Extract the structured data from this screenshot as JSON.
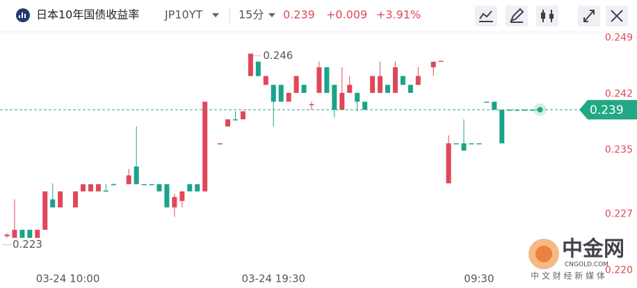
{
  "header": {
    "title": "日本10年国债收益率",
    "symbol": "JP10YT",
    "interval": "15分",
    "change": "+0.009",
    "change_pct": "+3.91%"
  },
  "chart_data": {
    "type": "candlestick",
    "categories": [
      null,
      null,
      null,
      null,
      null,
      null,
      null,
      null,
      "03-24 10:00",
      null,
      null,
      null,
      null,
      null,
      null,
      null,
      null,
      null,
      null,
      null,
      null,
      null,
      null,
      null,
      null,
      null,
      null,
      null,
      null,
      null,
      null,
      null,
      null,
      null,
      null,
      "03-24 19:30",
      null,
      null,
      null,
      null,
      null,
      null,
      null,
      null,
      null,
      null,
      null,
      null,
      null,
      null,
      null,
      null,
      null,
      null,
      null,
      null,
      null,
      null,
      null,
      null,
      null,
      null,
      "09:30",
      null,
      null,
      null,
      null,
      null,
      null,
      null,
      null
    ],
    "open": [
      0.2232,
      0.223,
      0.224,
      0.224,
      0.223,
      0.224,
      0.2278,
      0.2268,
      null,
      0.2268,
      0.2288,
      0.2288,
      0.2288,
      0.2289,
      0.2297,
      null,
      0.2297,
      0.2319,
      0.2297,
      0.2297,
      0.2297,
      0.2297,
      0.2268,
      0.2276,
      0.2297,
      0.2297,
      0.2288,
      null,
      0.2347,
      0.2369,
      0.2378,
      0.2378,
      0.2432,
      0.245,
      0.2421,
      0.2421,
      0.2421,
      0.24,
      0.2411,
      0.2421,
      0.2396,
      0.2411,
      0.2443,
      0.2421,
      0.239,
      0.2411,
      0.2411,
      0.24,
      0.2411,
      0.2411,
      0.2421,
      0.2411,
      0.2432,
      0.2421,
      0.2421,
      null,
      0.2443,
      0.245,
      0.2298,
      0.2348,
      0.2348,
      0.2348,
      0.2348,
      0.24,
      0.24,
      0.239,
      0.239,
      0.239,
      0.239,
      0.239,
      0.239
    ],
    "high": [
      0.2236,
      0.2278,
      0.224,
      0.224,
      0.224,
      0.2288,
      0.2298,
      0.2288,
      null,
      0.2288,
      0.2297,
      0.2297,
      0.2297,
      0.2297,
      0.2298,
      null,
      0.2316,
      0.2369,
      0.2297,
      0.2297,
      0.2297,
      0.2297,
      0.2285,
      0.2288,
      0.2297,
      0.2297,
      0.24,
      null,
      0.2348,
      0.2378,
      0.2388,
      0.2388,
      0.246,
      0.245,
      0.2432,
      0.2421,
      0.2421,
      0.2411,
      0.2432,
      0.2421,
      0.24,
      0.245,
      0.2443,
      0.2421,
      0.2443,
      0.2432,
      0.2411,
      0.24,
      0.2432,
      0.245,
      0.2421,
      0.245,
      0.2432,
      0.2421,
      0.2443,
      null,
      0.245,
      0.2451,
      0.2358,
      0.2348,
      0.2378,
      0.2348,
      0.2348,
      0.24,
      0.24,
      0.239,
      0.239,
      0.239,
      0.239,
      0.239,
      0.239
    ],
    "low": [
      0.223,
      0.223,
      0.223,
      0.223,
      0.223,
      0.224,
      0.2268,
      0.2268,
      null,
      0.2268,
      0.2288,
      0.2288,
      0.2288,
      0.2288,
      0.2296,
      null,
      0.2297,
      0.2297,
      0.2296,
      0.2296,
      0.2288,
      0.2268,
      0.2256,
      0.2268,
      0.2288,
      0.2288,
      0.2288,
      null,
      0.2347,
      0.2369,
      0.2377,
      0.2378,
      0.2432,
      0.2432,
      0.2421,
      0.2369,
      0.24,
      0.24,
      0.2411,
      0.2411,
      0.239,
      0.2411,
      0.2411,
      0.238,
      0.239,
      0.2411,
      0.2388,
      0.239,
      0.2411,
      0.2411,
      0.2411,
      0.2411,
      0.2421,
      0.2411,
      0.2421,
      null,
      0.2432,
      0.245,
      0.2298,
      0.2347,
      0.2339,
      0.2347,
      0.2347,
      0.2399,
      0.239,
      0.2348,
      0.2389,
      0.2389,
      0.2389,
      0.2389,
      0.239
    ],
    "close": [
      0.2234,
      0.224,
      0.223,
      0.223,
      0.224,
      0.2288,
      0.2268,
      0.2288,
      null,
      0.2288,
      0.2297,
      0.2297,
      0.2297,
      0.2288,
      0.2296,
      null,
      0.2308,
      0.2297,
      0.2296,
      0.2296,
      0.2288,
      0.2268,
      0.2281,
      0.2288,
      0.2288,
      0.2288,
      0.24,
      null,
      0.2348,
      0.2378,
      0.2377,
      0.2388,
      0.246,
      0.2432,
      0.2432,
      0.24,
      0.24,
      0.2411,
      0.2432,
      0.2411,
      0.2397,
      0.2443,
      0.2411,
      0.239,
      0.2411,
      0.2421,
      0.24,
      0.239,
      0.2432,
      0.2432,
      0.2411,
      0.2443,
      0.2421,
      0.2411,
      0.2432,
      null,
      0.245,
      0.2451,
      0.2348,
      0.2347,
      0.2339,
      0.2347,
      0.2347,
      0.2399,
      0.239,
      0.2348,
      0.2389,
      0.2389,
      0.2389,
      0.2389,
      0.239
    ],
    "up_color": "#e0475a",
    "down_color": "#1aa38a",
    "ylim": [
      0.2189,
      0.2488
    ],
    "yticks": [
      0.249,
      0.242,
      0.235,
      0.227,
      {
        "value": 0.22,
        "label": "0.220"
      }
    ],
    "high_marker": 0.246,
    "low_marker": 0.223,
    "last": 0.239,
    "last_color": "#22a884",
    "grid": false
  },
  "watermark": {
    "brand": "中金网",
    "domain": "CNGOLD.COM",
    "slogan": "中 文 财 经 新 媒 体"
  }
}
